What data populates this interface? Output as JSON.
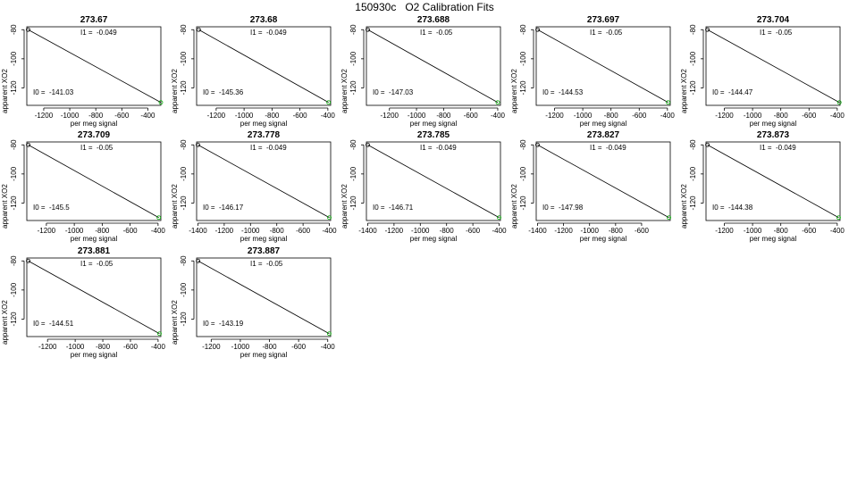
{
  "figure": {
    "title": "150930c   O2 Calibration Fits"
  },
  "chart_data": [
    {
      "type": "line",
      "title": "273.67",
      "xlabel": "per meg signal",
      "ylabel": "apparent XO2",
      "xlim": [
        -1330,
        -300
      ],
      "ylim": [
        -132,
        -78
      ],
      "xticks": [
        -1200,
        -1000,
        -800,
        -600,
        -400
      ],
      "yticks": [
        -80,
        -100,
        -120
      ],
      "i1_label": "I1 =  -0.049",
      "i0_label": "I0 =  -141.03",
      "points": [
        {
          "x": -1320,
          "y": -80
        },
        {
          "x": -300,
          "y": -130
        }
      ],
      "fit_line": [
        [
          -1320,
          -80
        ],
        [
          -300,
          -130
        ]
      ]
    },
    {
      "type": "line",
      "title": "273.68",
      "xlabel": "per meg signal",
      "ylabel": "apparent XO2",
      "xlim": [
        -1340,
        -380
      ],
      "ylim": [
        -132,
        -78
      ],
      "xticks": [
        -1200,
        -1000,
        -800,
        -600,
        -400
      ],
      "yticks": [
        -80,
        -100,
        -120
      ],
      "i1_label": "I1 =  -0.049",
      "i0_label": "I0 =  -145.36",
      "points": [
        {
          "x": -1325,
          "y": -80
        },
        {
          "x": -395,
          "y": -130
        }
      ],
      "fit_line": [
        [
          -1325,
          -80
        ],
        [
          -395,
          -130
        ]
      ]
    },
    {
      "type": "line",
      "title": "273.688",
      "xlabel": "per meg signal",
      "ylabel": "apparent XO2",
      "xlim": [
        -1370,
        -380
      ],
      "ylim": [
        -132,
        -78
      ],
      "xticks": [
        -1200,
        -1000,
        -800,
        -600,
        -400
      ],
      "yticks": [
        -80,
        -100,
        -120
      ],
      "i1_label": "I1 =  -0.05",
      "i0_label": "I0 =  -147.03",
      "points": [
        {
          "x": -1360,
          "y": -80
        },
        {
          "x": -400,
          "y": -130
        }
      ],
      "fit_line": [
        [
          -1360,
          -80
        ],
        [
          -400,
          -130
        ]
      ]
    },
    {
      "type": "line",
      "title": "273.697",
      "xlabel": "per meg signal",
      "ylabel": "apparent XO2",
      "xlim": [
        -1330,
        -380
      ],
      "ylim": [
        -132,
        -78
      ],
      "xticks": [
        -1200,
        -1000,
        -800,
        -600,
        -400
      ],
      "yticks": [
        -80,
        -100,
        -120
      ],
      "i1_label": "I1 =  -0.05",
      "i0_label": "I0 =  -144.53",
      "points": [
        {
          "x": -1320,
          "y": -80
        },
        {
          "x": -395,
          "y": -130
        }
      ],
      "fit_line": [
        [
          -1320,
          -80
        ],
        [
          -395,
          -130
        ]
      ]
    },
    {
      "type": "line",
      "title": "273.704",
      "xlabel": "per meg signal",
      "ylabel": "apparent XO2",
      "xlim": [
        -1330,
        -380
      ],
      "ylim": [
        -132,
        -78
      ],
      "xticks": [
        -1200,
        -1000,
        -800,
        -600,
        -400
      ],
      "yticks": [
        -80,
        -100,
        -120
      ],
      "i1_label": "I1 =  -0.05",
      "i0_label": "I0 =  -144.47",
      "points": [
        {
          "x": -1320,
          "y": -80
        },
        {
          "x": -385,
          "y": -130
        }
      ],
      "fit_line": [
        [
          -1320,
          -80
        ],
        [
          -385,
          -130
        ]
      ]
    },
    {
      "type": "line",
      "title": "273.709",
      "xlabel": "per meg signal",
      "ylabel": "apparent XO2",
      "xlim": [
        -1340,
        -380
      ],
      "ylim": [
        -132,
        -78
      ],
      "xticks": [
        -1200,
        -1000,
        -800,
        -600,
        -400
      ],
      "yticks": [
        -80,
        -100,
        -120
      ],
      "i1_label": "I1 =  -0.05",
      "i0_label": "I0 =  -145.5",
      "points": [
        {
          "x": -1330,
          "y": -80
        },
        {
          "x": -395,
          "y": -130
        }
      ],
      "fit_line": [
        [
          -1330,
          -80
        ],
        [
          -395,
          -130
        ]
      ]
    },
    {
      "type": "line",
      "title": "273.778",
      "xlabel": "per meg signal",
      "ylabel": "apparent XO2",
      "xlim": [
        -1410,
        -390
      ],
      "ylim": [
        -132,
        -78
      ],
      "xticks": [
        -1400,
        -1200,
        -1000,
        -800,
        -600,
        -400
      ],
      "yticks": [
        -80,
        -100,
        -120
      ],
      "i1_label": "I1 =  -0.049",
      "i0_label": "I0 =  -146.17",
      "points": [
        {
          "x": -1400,
          "y": -80
        },
        {
          "x": -400,
          "y": -130
        }
      ],
      "fit_line": [
        [
          -1400,
          -80
        ],
        [
          -400,
          -130
        ]
      ]
    },
    {
      "type": "line",
      "title": "273.785",
      "xlabel": "per meg signal",
      "ylabel": "apparent XO2",
      "xlim": [
        -1410,
        -390
      ],
      "ylim": [
        -132,
        -78
      ],
      "xticks": [
        -1400,
        -1200,
        -1000,
        -800,
        -600,
        -400
      ],
      "yticks": [
        -80,
        -100,
        -120
      ],
      "i1_label": "I1 =  -0.049",
      "i0_label": "I0 =  -146.71",
      "points": [
        {
          "x": -1400,
          "y": -80
        },
        {
          "x": -400,
          "y": -130
        }
      ],
      "fit_line": [
        [
          -1400,
          -80
        ],
        [
          -400,
          -130
        ]
      ]
    },
    {
      "type": "line",
      "title": "273.827",
      "xlabel": "per meg signal",
      "ylabel": "apparent XO2",
      "xlim": [
        -1410,
        -380
      ],
      "ylim": [
        -132,
        -78
      ],
      "xticks": [
        -1400,
        -1200,
        -1000,
        -800,
        -600
      ],
      "yticks": [
        -80,
        -100,
        -120
      ],
      "i1_label": "I1 =  -0.049",
      "i0_label": "I0 =  -147.98",
      "points": [
        {
          "x": -1400,
          "y": -80
        },
        {
          "x": -390,
          "y": -130
        }
      ],
      "fit_line": [
        [
          -1400,
          -80
        ],
        [
          -390,
          -130
        ]
      ]
    },
    {
      "type": "line",
      "title": "273.873",
      "xlabel": "per meg signal",
      "ylabel": "apparent XO2",
      "xlim": [
        -1330,
        -380
      ],
      "ylim": [
        -132,
        -78
      ],
      "xticks": [
        -1200,
        -1000,
        -800,
        -600,
        -400
      ],
      "yticks": [
        -80,
        -100,
        -120
      ],
      "i1_label": "I1 =  -0.049",
      "i0_label": "I0 =  -144.38",
      "points": [
        {
          "x": -1320,
          "y": -80
        },
        {
          "x": -390,
          "y": -130
        }
      ],
      "fit_line": [
        [
          -1320,
          -80
        ],
        [
          -390,
          -130
        ]
      ]
    },
    {
      "type": "line",
      "title": "273.881",
      "xlabel": "per meg signal",
      "ylabel": "apparent XO2",
      "xlim": [
        -1350,
        -380
      ],
      "ylim": [
        -132,
        -78
      ],
      "xticks": [
        -1200,
        -1000,
        -800,
        -600,
        -400
      ],
      "yticks": [
        -80,
        -100,
        -120
      ],
      "i1_label": "I1 =  -0.05",
      "i0_label": "I0 =  -144.51",
      "points": [
        {
          "x": -1340,
          "y": -80
        },
        {
          "x": -390,
          "y": -130
        }
      ],
      "fit_line": [
        [
          -1340,
          -80
        ],
        [
          -390,
          -130
        ]
      ]
    },
    {
      "type": "line",
      "title": "273.887",
      "xlabel": "per meg signal",
      "ylabel": "apparent XO2",
      "xlim": [
        -1300,
        -380
      ],
      "ylim": [
        -132,
        -78
      ],
      "xticks": [
        -1200,
        -1000,
        -800,
        -600,
        -400
      ],
      "yticks": [
        -80,
        -100,
        -120
      ],
      "i1_label": "I1 =  -0.05",
      "i0_label": "I0 =  -143.19",
      "points": [
        {
          "x": -1290,
          "y": -80
        },
        {
          "x": -390,
          "y": -130
        }
      ],
      "fit_line": [
        [
          -1290,
          -80
        ],
        [
          -390,
          -130
        ]
      ]
    }
  ],
  "colors": {
    "fit_line": "#000000",
    "first_point": "#000000",
    "last_point": "#00aa00",
    "axes": "#000000"
  }
}
